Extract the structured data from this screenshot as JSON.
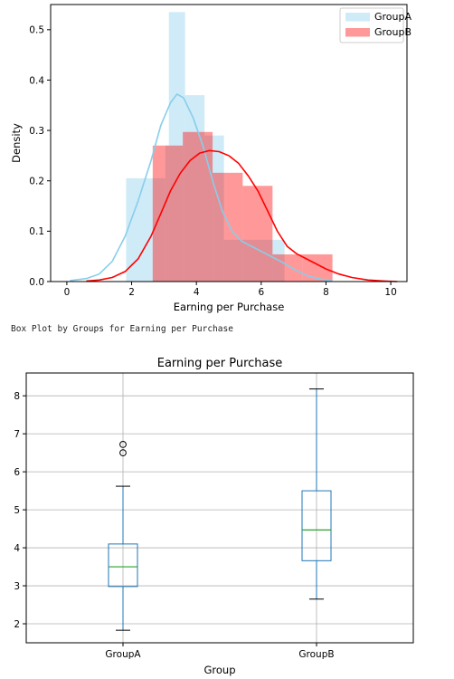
{
  "caption": "Box Plot by Groups for Earning per Purchase",
  "colors": {
    "groupA": "#87CEEB",
    "groupB": "#FF0000",
    "median": "#2ca02c",
    "box": "#1f77b4",
    "grid": "#b0b0b0"
  },
  "chart_data": [
    {
      "type": "histogram+kde",
      "xlabel": "Earning per Purchase",
      "ylabel": "Density",
      "xlim": [
        -0.5,
        10.5
      ],
      "ylim": [
        0,
        0.55
      ],
      "xticks": [
        "0",
        "2",
        "4",
        "6",
        "8",
        "10"
      ],
      "yticks": [
        "0.0",
        "0.1",
        "0.2",
        "0.3",
        "0.4",
        "0.5"
      ],
      "legend": {
        "placement": "top-right",
        "entries": [
          "GroupA",
          "GroupB"
        ]
      },
      "series": [
        {
          "name": "GroupA",
          "bins": [
            {
              "x0": 1.83,
              "x1": 3.04,
              "density": 0.205
            },
            {
              "x0": 3.04,
              "x1": 3.15,
              "density": 0.27
            },
            {
              "x0": 3.15,
              "x1": 3.65,
              "density": 0.535
            },
            {
              "x0": 3.65,
              "x1": 4.25,
              "density": 0.37
            },
            {
              "x0": 4.25,
              "x1": 4.85,
              "density": 0.29
            },
            {
              "x0": 4.85,
              "x1": 5.45,
              "density": 0.083
            },
            {
              "x0": 5.45,
              "x1": 6.67,
              "density": 0.083
            },
            {
              "x0": 6.67,
              "x1": 6.72,
              "density": 0.083
            }
          ],
          "kde": [
            [
              0.1,
              0.002
            ],
            [
              0.6,
              0.006
            ],
            [
              1.0,
              0.015
            ],
            [
              1.4,
              0.04
            ],
            [
              1.8,
              0.09
            ],
            [
              2.2,
              0.16
            ],
            [
              2.6,
              0.24
            ],
            [
              2.9,
              0.31
            ],
            [
              3.2,
              0.355
            ],
            [
              3.4,
              0.372
            ],
            [
              3.6,
              0.365
            ],
            [
              3.9,
              0.325
            ],
            [
              4.2,
              0.27
            ],
            [
              4.5,
              0.2
            ],
            [
              4.8,
              0.14
            ],
            [
              5.1,
              0.1
            ],
            [
              5.4,
              0.08
            ],
            [
              5.7,
              0.07
            ],
            [
              6.0,
              0.06
            ],
            [
              6.3,
              0.05
            ],
            [
              6.6,
              0.04
            ],
            [
              7.0,
              0.025
            ],
            [
              7.4,
              0.012
            ],
            [
              7.8,
              0.005
            ],
            [
              8.2,
              0.001
            ]
          ]
        },
        {
          "name": "GroupB",
          "bins": [
            {
              "x0": 2.65,
              "x1": 3.58,
              "density": 0.27
            },
            {
              "x0": 3.58,
              "x1": 4.5,
              "density": 0.297
            },
            {
              "x0": 4.5,
              "x1": 5.43,
              "density": 0.216
            },
            {
              "x0": 5.43,
              "x1": 6.35,
              "density": 0.19
            },
            {
              "x0": 6.35,
              "x1": 7.28,
              "density": 0.054
            },
            {
              "x0": 7.28,
              "x1": 8.2,
              "density": 0.054
            }
          ],
          "kde": [
            [
              0.6,
              0.001
            ],
            [
              1.0,
              0.003
            ],
            [
              1.4,
              0.008
            ],
            [
              1.8,
              0.02
            ],
            [
              2.2,
              0.045
            ],
            [
              2.6,
              0.09
            ],
            [
              2.9,
              0.135
            ],
            [
              3.2,
              0.18
            ],
            [
              3.5,
              0.215
            ],
            [
              3.8,
              0.24
            ],
            [
              4.1,
              0.255
            ],
            [
              4.4,
              0.26
            ],
            [
              4.7,
              0.258
            ],
            [
              5.0,
              0.25
            ],
            [
              5.3,
              0.235
            ],
            [
              5.6,
              0.21
            ],
            [
              5.9,
              0.18
            ],
            [
              6.2,
              0.14
            ],
            [
              6.5,
              0.1
            ],
            [
              6.8,
              0.07
            ],
            [
              7.1,
              0.055
            ],
            [
              7.4,
              0.045
            ],
            [
              7.7,
              0.035
            ],
            [
              8.0,
              0.025
            ],
            [
              8.4,
              0.015
            ],
            [
              8.8,
              0.008
            ],
            [
              9.3,
              0.003
            ],
            [
              9.8,
              0.001
            ],
            [
              10.2,
              0.0
            ]
          ]
        }
      ]
    },
    {
      "type": "box",
      "title": "Earning per Purchase",
      "xlabel": "Group",
      "ylim": [
        1.5,
        8.6
      ],
      "yticks": [
        "2",
        "3",
        "4",
        "5",
        "6",
        "7",
        "8"
      ],
      "grid": true,
      "categories": [
        "GroupA",
        "GroupB"
      ],
      "boxes": [
        {
          "name": "GroupA",
          "whisker_low": 1.83,
          "q1": 2.98,
          "median": 3.5,
          "q3": 4.1,
          "whisker_high": 5.62,
          "outliers": [
            6.5,
            6.72
          ]
        },
        {
          "name": "GroupB",
          "whisker_low": 2.65,
          "q1": 3.66,
          "median": 4.47,
          "q3": 5.5,
          "whisker_high": 8.18,
          "outliers": []
        }
      ]
    }
  ]
}
